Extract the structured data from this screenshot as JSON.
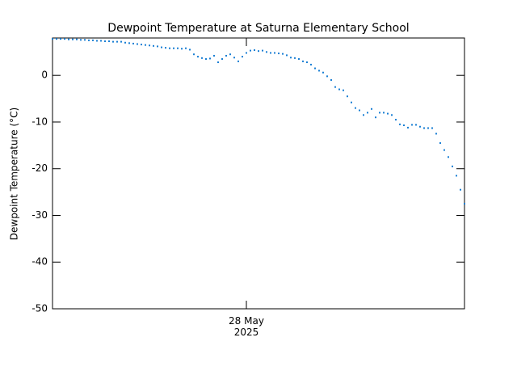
{
  "chart_data": {
    "type": "scatter",
    "title": "Dewpoint Temperature at Saturna Elementary School",
    "ylabel": "Dewpoint Temperature (°C)",
    "color": "#1a7fd4",
    "xlim": [
      0,
      102
    ],
    "xticks": [
      {
        "value": 48,
        "label": "28 May 2025"
      }
    ],
    "ylim": [
      -50,
      8
    ],
    "yticks": [
      0,
      -10,
      -20,
      -30,
      -40,
      -50
    ],
    "values": [
      7.8,
      7.8,
      7.8,
      7.8,
      7.7,
      7.7,
      7.7,
      7.6,
      7.6,
      7.5,
      7.5,
      7.4,
      7.4,
      7.3,
      7.3,
      7.2,
      7.2,
      7.2,
      7.0,
      6.9,
      6.8,
      6.7,
      6.6,
      6.5,
      6.4,
      6.3,
      6.2,
      6.0,
      5.9,
      5.8,
      5.8,
      5.8,
      5.7,
      5.8,
      5.5,
      4.5,
      4.0,
      3.7,
      3.5,
      3.6,
      4.2,
      2.8,
      3.5,
      4.2,
      4.5,
      3.8,
      3.0,
      4.0,
      4.8,
      5.3,
      5.4,
      5.2,
      5.3,
      5.0,
      4.8,
      4.8,
      4.7,
      4.6,
      4.3,
      3.8,
      3.7,
      3.5,
      3.0,
      2.8,
      2.3,
      1.5,
      1.0,
      0.6,
      -0.2,
      -1.0,
      -2.5,
      -3.0,
      -3.2,
      -4.5,
      -5.8,
      -7.0,
      -7.5,
      -8.5,
      -8.0,
      -7.2,
      -9.0,
      -8.0,
      -8.0,
      -8.2,
      -8.5,
      -9.5,
      -10.5,
      -10.7,
      -11.2,
      -10.6,
      -10.6,
      -11.0,
      -11.3,
      -11.3,
      -11.3,
      -12.5,
      -14.5,
      -16.0,
      -17.5,
      -19.5,
      -21.5,
      -24.5,
      -27.5
    ]
  }
}
